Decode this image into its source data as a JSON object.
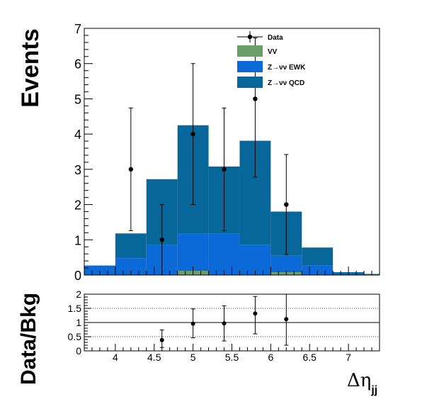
{
  "chart_data": [
    {
      "type": "bar",
      "stacked": true,
      "xlabel": "Δη",
      "xlabel_subscript": "jj",
      "ylabel": "Events",
      "xlim": [
        3.6,
        7.4
      ],
      "ylim": [
        0,
        7
      ],
      "yticks": [
        "0",
        "1",
        "2",
        "3",
        "4",
        "5",
        "6",
        "7"
      ],
      "bin_edges": [
        3.6,
        4.0,
        4.4,
        4.8,
        5.2,
        5.6,
        6.0,
        6.4,
        6.8,
        7.2,
        7.6
      ],
      "series": [
        {
          "name": "VV",
          "color": "#6b9e6b",
          "values": [
            0,
            0,
            0,
            0.12,
            0,
            0,
            0.08,
            0,
            0,
            0
          ]
        },
        {
          "name": "Z→νν EWK",
          "color": "#0c6ad8",
          "values": [
            0.27,
            0.48,
            0.85,
            1.05,
            1.18,
            0.86,
            0.47,
            0.28,
            0.03,
            0.02
          ]
        },
        {
          "name": "Z→νν QCD",
          "color": "#08679a",
          "values": [
            0,
            0.7,
            1.87,
            3.08,
            1.9,
            2.95,
            1.25,
            0.5,
            0.05,
            0.01
          ]
        }
      ],
      "data_points": {
        "name": "Data",
        "x": [
          4.2,
          4.6,
          5.0,
          5.4,
          5.8,
          6.2
        ],
        "y": [
          3,
          1,
          4,
          3,
          5,
          2
        ],
        "yerr_low": [
          1.74,
          1.0,
          2.0,
          1.74,
          2.22,
          1.42
        ],
        "yerr_high": [
          1.74,
          1.0,
          2.0,
          1.74,
          1.73,
          1.42
        ]
      },
      "legend_position": "top-right"
    },
    {
      "type": "scatter",
      "ylabel": "Data/Bkg",
      "xlim": [
        3.6,
        7.4
      ],
      "ylim": [
        0,
        2
      ],
      "xticks": [
        "4",
        "4.5",
        "5",
        "5.5",
        "6",
        "6.5",
        "7"
      ],
      "yticks": [
        "0",
        "0.5",
        "1",
        "1.5",
        "2"
      ],
      "grid": "dotted horizontal at 0.5, 1.5, 2",
      "reference_line": 1,
      "x": [
        4.6,
        5.0,
        5.4,
        5.8,
        6.2
      ],
      "y": [
        0.38,
        0.96,
        0.97,
        1.32,
        1.12
      ],
      "yerr_low": [
        0.26,
        0.5,
        0.62,
        0.72,
        0.92
      ],
      "yerr_high": [
        0.36,
        0.52,
        0.62,
        0.6,
        0.92
      ]
    }
  ]
}
